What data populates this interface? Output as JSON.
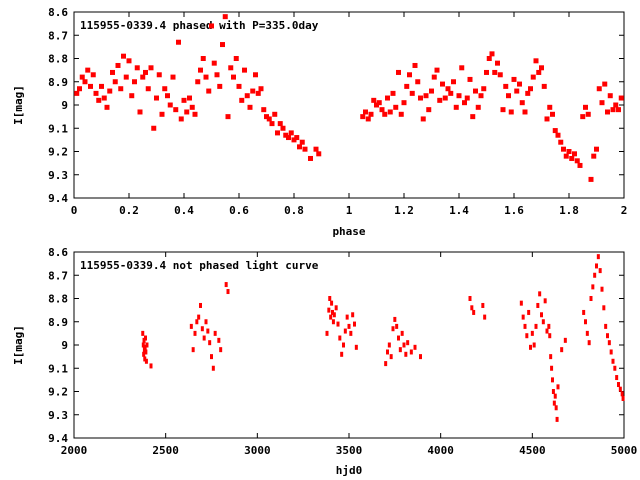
{
  "chart_data": [
    {
      "type": "scatter",
      "title": "115955-0339.4 phased with P=335.0day",
      "xlabel": "phase",
      "ylabel": "I[mag]",
      "xlim": [
        0,
        2
      ],
      "ylim": [
        9.4,
        8.6
      ],
      "y_inverted": true,
      "grid": false,
      "marker_color": "#ff0000",
      "xticks": [
        "0",
        "0.2",
        "0.4",
        "0.6",
        "0.8",
        "1",
        "1.2",
        "1.4",
        "1.6",
        "1.8",
        "2"
      ],
      "xtick_values": [
        0,
        0.2,
        0.4,
        0.6,
        0.8,
        1.0,
        1.2,
        1.4,
        1.6,
        1.8,
        2.0
      ],
      "yticks": [
        "8.6",
        "8.7",
        "8.8",
        "8.9",
        "9",
        "9.1",
        "9.2",
        "9.3",
        "9.4"
      ],
      "ytick_values": [
        8.6,
        8.7,
        8.8,
        8.9,
        9.0,
        9.1,
        9.2,
        9.3,
        9.4
      ],
      "points": [
        [
          0.01,
          8.95
        ],
        [
          0.02,
          8.93
        ],
        [
          0.03,
          8.88
        ],
        [
          0.04,
          8.9
        ],
        [
          0.05,
          8.85
        ],
        [
          0.06,
          8.92
        ],
        [
          0.07,
          8.87
        ],
        [
          0.08,
          8.95
        ],
        [
          0.09,
          8.98
        ],
        [
          0.1,
          8.92
        ],
        [
          0.11,
          8.97
        ],
        [
          0.12,
          9.01
        ],
        [
          0.13,
          8.94
        ],
        [
          0.14,
          8.86
        ],
        [
          0.15,
          8.9
        ],
        [
          0.16,
          8.83
        ],
        [
          0.17,
          8.93
        ],
        [
          0.18,
          8.79
        ],
        [
          0.19,
          8.88
        ],
        [
          0.2,
          8.81
        ],
        [
          0.21,
          8.96
        ],
        [
          0.22,
          8.9
        ],
        [
          0.23,
          8.84
        ],
        [
          0.24,
          9.03
        ],
        [
          0.25,
          8.88
        ],
        [
          0.26,
          8.86
        ],
        [
          0.27,
          8.93
        ],
        [
          0.28,
          8.84
        ],
        [
          0.29,
          9.1
        ],
        [
          0.3,
          8.97
        ],
        [
          0.31,
          8.87
        ],
        [
          0.32,
          9.04
        ],
        [
          0.33,
          8.93
        ],
        [
          0.34,
          8.96
        ],
        [
          0.35,
          9.0
        ],
        [
          0.36,
          8.88
        ],
        [
          0.37,
          9.02
        ],
        [
          0.38,
          8.73
        ],
        [
          0.39,
          9.06
        ],
        [
          0.4,
          8.98
        ],
        [
          0.41,
          9.03
        ],
        [
          0.42,
          8.97
        ],
        [
          0.43,
          9.01
        ],
        [
          0.44,
          9.04
        ],
        [
          0.45,
          8.9
        ],
        [
          0.46,
          8.85
        ],
        [
          0.47,
          8.8
        ],
        [
          0.48,
          8.88
        ],
        [
          0.49,
          8.94
        ],
        [
          0.5,
          8.66
        ],
        [
          0.51,
          8.82
        ],
        [
          0.52,
          8.87
        ],
        [
          0.53,
          8.92
        ],
        [
          0.54,
          8.74
        ],
        [
          0.55,
          8.62
        ],
        [
          0.56,
          9.05
        ],
        [
          0.57,
          8.84
        ],
        [
          0.58,
          8.88
        ],
        [
          0.59,
          8.8
        ],
        [
          0.6,
          8.92
        ],
        [
          0.61,
          8.98
        ],
        [
          0.62,
          8.85
        ],
        [
          0.63,
          8.96
        ],
        [
          0.64,
          9.01
        ],
        [
          0.65,
          8.94
        ],
        [
          0.66,
          8.87
        ],
        [
          0.67,
          8.95
        ],
        [
          0.68,
          8.93
        ],
        [
          0.69,
          9.02
        ],
        [
          0.7,
          9.05
        ],
        [
          0.71,
          9.06
        ],
        [
          0.72,
          9.08
        ],
        [
          0.73,
          9.04
        ],
        [
          0.74,
          9.12
        ],
        [
          0.75,
          9.08
        ],
        [
          0.76,
          9.1
        ],
        [
          0.77,
          9.13
        ],
        [
          0.78,
          9.14
        ],
        [
          0.79,
          9.12
        ],
        [
          0.8,
          9.15
        ],
        [
          0.81,
          9.14
        ],
        [
          0.82,
          9.18
        ],
        [
          0.83,
          9.16
        ],
        [
          0.84,
          9.19
        ],
        [
          0.86,
          9.23
        ],
        [
          0.88,
          9.19
        ],
        [
          0.89,
          9.21
        ],
        [
          1.05,
          9.05
        ],
        [
          1.06,
          9.03
        ],
        [
          1.07,
          9.06
        ],
        [
          1.08,
          9.04
        ],
        [
          1.09,
          8.98
        ],
        [
          1.1,
          9.0
        ],
        [
          1.11,
          8.99
        ],
        [
          1.12,
          9.02
        ],
        [
          1.13,
          9.04
        ],
        [
          1.14,
          8.97
        ],
        [
          1.15,
          9.03
        ],
        [
          1.16,
          8.95
        ],
        [
          1.17,
          9.01
        ],
        [
          1.18,
          8.86
        ],
        [
          1.19,
          9.04
        ],
        [
          1.2,
          8.99
        ],
        [
          1.21,
          8.92
        ],
        [
          1.22,
          8.87
        ],
        [
          1.23,
          8.95
        ],
        [
          1.24,
          8.83
        ],
        [
          1.25,
          8.9
        ],
        [
          1.26,
          8.97
        ],
        [
          1.27,
          9.06
        ],
        [
          1.28,
          8.96
        ],
        [
          1.29,
          9.02
        ],
        [
          1.3,
          8.94
        ],
        [
          1.31,
          8.88
        ],
        [
          1.32,
          8.85
        ],
        [
          1.33,
          8.98
        ],
        [
          1.34,
          8.91
        ],
        [
          1.35,
          8.97
        ],
        [
          1.36,
          8.93
        ],
        [
          1.37,
          8.95
        ],
        [
          1.38,
          8.9
        ],
        [
          1.39,
          9.01
        ],
        [
          1.4,
          8.96
        ],
        [
          1.41,
          8.84
        ],
        [
          1.42,
          8.99
        ],
        [
          1.43,
          8.97
        ],
        [
          1.44,
          8.89
        ],
        [
          1.45,
          9.05
        ],
        [
          1.46,
          8.94
        ],
        [
          1.47,
          9.01
        ],
        [
          1.48,
          8.96
        ],
        [
          1.49,
          8.93
        ],
        [
          1.5,
          8.86
        ],
        [
          1.51,
          8.8
        ],
        [
          1.52,
          8.78
        ],
        [
          1.53,
          8.86
        ],
        [
          1.54,
          8.82
        ],
        [
          1.55,
          8.87
        ],
        [
          1.56,
          9.02
        ],
        [
          1.57,
          8.92
        ],
        [
          1.58,
          8.96
        ],
        [
          1.59,
          9.03
        ],
        [
          1.6,
          8.89
        ],
        [
          1.61,
          8.94
        ],
        [
          1.62,
          8.91
        ],
        [
          1.63,
          8.99
        ],
        [
          1.64,
          9.03
        ],
        [
          1.65,
          8.95
        ],
        [
          1.66,
          8.93
        ],
        [
          1.67,
          8.88
        ],
        [
          1.68,
          8.81
        ],
        [
          1.69,
          8.86
        ],
        [
          1.7,
          8.84
        ],
        [
          1.71,
          8.92
        ],
        [
          1.72,
          9.06
        ],
        [
          1.73,
          9.01
        ],
        [
          1.74,
          9.04
        ],
        [
          1.75,
          9.11
        ],
        [
          1.76,
          9.13
        ],
        [
          1.77,
          9.16
        ],
        [
          1.78,
          9.19
        ],
        [
          1.79,
          9.22
        ],
        [
          1.8,
          9.2
        ],
        [
          1.81,
          9.23
        ],
        [
          1.82,
          9.21
        ],
        [
          1.83,
          9.24
        ],
        [
          1.84,
          9.26
        ],
        [
          1.85,
          9.05
        ],
        [
          1.86,
          9.01
        ],
        [
          1.87,
          9.04
        ],
        [
          1.88,
          9.32
        ],
        [
          1.89,
          9.22
        ],
        [
          1.9,
          9.19
        ],
        [
          1.91,
          8.93
        ],
        [
          1.92,
          8.99
        ],
        [
          1.93,
          8.91
        ],
        [
          1.94,
          9.03
        ],
        [
          1.95,
          8.96
        ],
        [
          1.96,
          9.02
        ],
        [
          1.97,
          9.0
        ],
        [
          1.98,
          9.02
        ],
        [
          1.99,
          8.97
        ]
      ]
    },
    {
      "type": "scatter",
      "title": "115955-0339.4 not phased light curve",
      "xlabel": "hjd0",
      "ylabel": "I[mag]",
      "xlim": [
        2000,
        5000
      ],
      "ylim": [
        9.4,
        8.6
      ],
      "y_inverted": true,
      "grid": false,
      "marker_color": "#ff0000",
      "xticks": [
        "2000",
        "2500",
        "3000",
        "3500",
        "4000",
        "4500",
        "5000"
      ],
      "xtick_values": [
        2000,
        2500,
        3000,
        3500,
        4000,
        4500,
        5000
      ],
      "yticks": [
        "8.6",
        "8.7",
        "8.8",
        "8.9",
        "9",
        "9.1",
        "9.2",
        "9.3",
        "9.4"
      ],
      "ytick_values": [
        8.6,
        8.7,
        8.8,
        8.9,
        9.0,
        9.1,
        9.2,
        9.3,
        9.4
      ],
      "points": [
        [
          2375,
          8.95
        ],
        [
          2378,
          9.0
        ],
        [
          2380,
          9.04
        ],
        [
          2382,
          8.98
        ],
        [
          2384,
          9.02
        ],
        [
          2386,
          9.06
        ],
        [
          2388,
          9.01
        ],
        [
          2390,
          8.97
        ],
        [
          2392,
          9.03
        ],
        [
          2395,
          9.07
        ],
        [
          2398,
          9.0
        ],
        [
          2420,
          9.09
        ],
        [
          2640,
          8.92
        ],
        [
          2650,
          9.02
        ],
        [
          2660,
          8.95
        ],
        [
          2670,
          8.9
        ],
        [
          2680,
          8.88
        ],
        [
          2690,
          8.83
        ],
        [
          2700,
          8.93
        ],
        [
          2710,
          8.97
        ],
        [
          2720,
          8.9
        ],
        [
          2730,
          8.94
        ],
        [
          2740,
          8.99
        ],
        [
          2750,
          9.05
        ],
        [
          2760,
          9.1
        ],
        [
          2770,
          8.95
        ],
        [
          2790,
          8.98
        ],
        [
          2800,
          9.02
        ],
        [
          2830,
          8.74
        ],
        [
          2840,
          8.77
        ],
        [
          3390,
          8.85
        ],
        [
          3395,
          8.8
        ],
        [
          3400,
          8.88
        ],
        [
          3405,
          8.82
        ],
        [
          3410,
          8.86
        ],
        [
          3415,
          8.9
        ],
        [
          3420,
          8.87
        ],
        [
          3430,
          8.84
        ],
        [
          3440,
          8.91
        ],
        [
          3450,
          8.97
        ],
        [
          3460,
          9.04
        ],
        [
          3470,
          9.0
        ],
        [
          3480,
          8.94
        ],
        [
          3490,
          8.88
        ],
        [
          3500,
          8.92
        ],
        [
          3510,
          8.95
        ],
        [
          3520,
          8.87
        ],
        [
          3530,
          8.91
        ],
        [
          3540,
          9.01
        ],
        [
          3380,
          8.95
        ],
        [
          3700,
          9.08
        ],
        [
          3710,
          9.03
        ],
        [
          3720,
          9.0
        ],
        [
          3730,
          9.05
        ],
        [
          3740,
          8.93
        ],
        [
          3750,
          8.89
        ],
        [
          3760,
          8.92
        ],
        [
          3770,
          8.97
        ],
        [
          3780,
          9.02
        ],
        [
          3790,
          8.95
        ],
        [
          3800,
          9.0
        ],
        [
          3810,
          9.04
        ],
        [
          3820,
          8.99
        ],
        [
          3840,
          9.03
        ],
        [
          3860,
          9.01
        ],
        [
          3890,
          9.05
        ],
        [
          4160,
          8.8
        ],
        [
          4170,
          8.84
        ],
        [
          4180,
          8.86
        ],
        [
          4230,
          8.83
        ],
        [
          4240,
          8.88
        ],
        [
          4440,
          8.82
        ],
        [
          4450,
          8.88
        ],
        [
          4460,
          8.92
        ],
        [
          4470,
          8.96
        ],
        [
          4480,
          8.86
        ],
        [
          4490,
          9.01
        ],
        [
          4500,
          8.95
        ],
        [
          4510,
          9.0
        ],
        [
          4520,
          8.92
        ],
        [
          4530,
          8.83
        ],
        [
          4540,
          8.78
        ],
        [
          4550,
          8.87
        ],
        [
          4560,
          8.9
        ],
        [
          4570,
          8.81
        ],
        [
          4580,
          8.94
        ],
        [
          4590,
          8.92
        ],
        [
          4595,
          8.96
        ],
        [
          4600,
          9.05
        ],
        [
          4605,
          9.1
        ],
        [
          4610,
          9.15
        ],
        [
          4615,
          9.2
        ],
        [
          4620,
          9.25
        ],
        [
          4625,
          9.22
        ],
        [
          4630,
          9.27
        ],
        [
          4635,
          9.32
        ],
        [
          4640,
          9.18
        ],
        [
          4660,
          9.02
        ],
        [
          4680,
          8.98
        ],
        [
          4780,
          8.86
        ],
        [
          4790,
          8.9
        ],
        [
          4800,
          8.95
        ],
        [
          4810,
          8.99
        ],
        [
          4820,
          8.8
        ],
        [
          4830,
          8.75
        ],
        [
          4840,
          8.7
        ],
        [
          4850,
          8.66
        ],
        [
          4860,
          8.62
        ],
        [
          4870,
          8.68
        ],
        [
          4880,
          8.76
        ],
        [
          4890,
          8.84
        ],
        [
          4900,
          8.92
        ],
        [
          4910,
          8.96
        ],
        [
          4920,
          8.99
        ],
        [
          4930,
          9.03
        ],
        [
          4940,
          9.07
        ],
        [
          4950,
          9.1
        ],
        [
          4960,
          9.14
        ],
        [
          4970,
          9.17
        ],
        [
          4980,
          9.19
        ],
        [
          4990,
          9.21
        ],
        [
          4995,
          9.23
        ]
      ]
    }
  ]
}
